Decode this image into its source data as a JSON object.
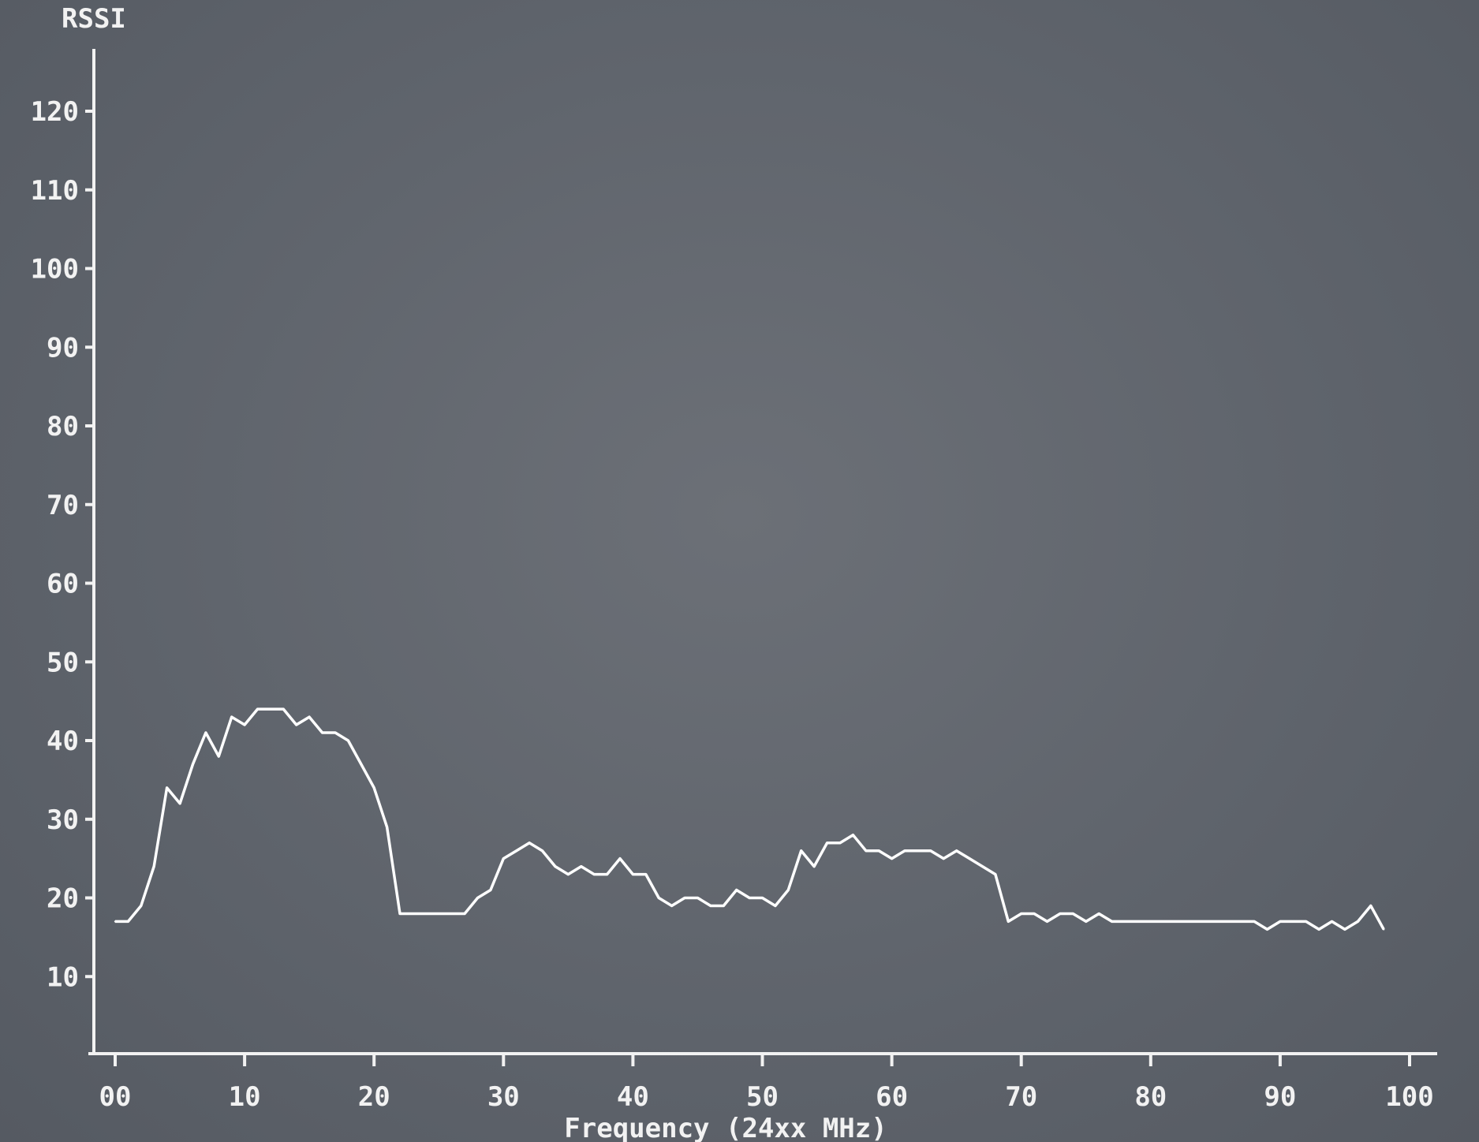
{
  "chart_data": {
    "type": "line",
    "title": "",
    "xlabel": "Frequency (24xx MHz)",
    "ylabel": "RSSI",
    "xlim": [
      0,
      100
    ],
    "ylim": [
      0,
      128
    ],
    "x_ticks": [
      "00",
      "10",
      "20",
      "30",
      "40",
      "50",
      "60",
      "70",
      "80",
      "90",
      "100"
    ],
    "y_ticks": [
      "10",
      "20",
      "30",
      "40",
      "50",
      "60",
      "70",
      "80",
      "90",
      "100",
      "110",
      "120"
    ],
    "grid": false,
    "colors": {
      "background": "#5f646c",
      "line": "#ffffff",
      "axis": "#f2f2f2"
    },
    "series": [
      {
        "x": [
          0,
          1,
          2,
          3,
          4,
          5,
          6,
          7,
          8,
          9,
          10,
          11,
          12,
          13,
          14,
          15,
          16,
          17,
          18,
          19,
          20,
          21,
          22,
          23,
          24,
          25,
          26,
          27,
          28,
          29,
          30,
          31,
          32,
          33,
          34,
          35,
          36,
          37,
          38,
          39,
          40,
          41,
          42,
          43,
          44,
          45,
          46,
          47,
          48,
          49,
          50,
          51,
          52,
          53,
          54,
          55,
          56,
          57,
          58,
          59,
          60,
          61,
          62,
          63,
          64,
          65,
          66,
          67,
          68,
          69,
          70,
          71,
          72,
          73,
          74,
          75,
          76,
          77,
          78,
          79,
          80,
          81,
          82,
          83,
          84,
          85,
          86,
          87,
          88,
          89,
          90,
          91,
          92,
          93,
          94,
          95,
          96,
          97,
          98
        ],
        "y": [
          17,
          17,
          19,
          24,
          34,
          32,
          37,
          41,
          38,
          43,
          42,
          44,
          44,
          44,
          42,
          43,
          41,
          41,
          40,
          37,
          34,
          29,
          18,
          18,
          18,
          18,
          18,
          18,
          20,
          21,
          25,
          26,
          27,
          26,
          24,
          23,
          24,
          23,
          23,
          25,
          23,
          23,
          20,
          19,
          20,
          20,
          19,
          19,
          21,
          20,
          20,
          19,
          21,
          26,
          24,
          27,
          27,
          28,
          26,
          26,
          25,
          26,
          26,
          26,
          25,
          26,
          25,
          24,
          23,
          17,
          18,
          18,
          17,
          18,
          18,
          17,
          18,
          17,
          17,
          17,
          17,
          17,
          17,
          17,
          17,
          17,
          17,
          17,
          17,
          16,
          17,
          17,
          17,
          16,
          17,
          16,
          17,
          19,
          16
        ]
      }
    ]
  }
}
